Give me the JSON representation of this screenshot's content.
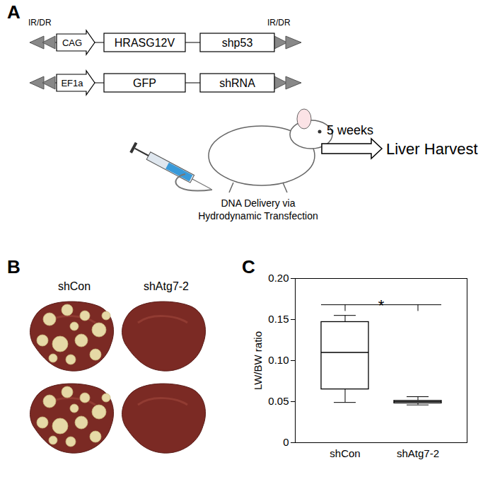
{
  "panel_a": {
    "label": "A",
    "constructs": [
      {
        "end_labels": [
          "IR/DR",
          "IR/DR"
        ],
        "promoter": "CAG",
        "elements": [
          "HRASG12V",
          "shp53"
        ]
      },
      {
        "promoter": "EF1a",
        "elements": [
          "GFP",
          "shRNA"
        ]
      }
    ],
    "delivery": [
      "DNA Delivery via",
      "Hydrodynamic Transfection"
    ],
    "duration": "5 weeks",
    "endpoint": "Liver Harvest"
  },
  "panel_b": {
    "label": "B",
    "groups": [
      "shCon",
      "shAtg7-2"
    ]
  },
  "chart_data": {
    "panel_label": "C",
    "type": "box",
    "categories": [
      "shCon",
      "shAtg7-2"
    ],
    "boxes": [
      {
        "min": 0.049,
        "q1": 0.065,
        "median": 0.11,
        "q3": 0.147,
        "max": 0.155
      },
      {
        "min": 0.046,
        "q1": 0.048,
        "median": 0.05,
        "q3": 0.051,
        "max": 0.056
      }
    ],
    "ylabel": "LW/BW ratio",
    "ylim": [
      0,
      0.2
    ],
    "yticks": [
      0,
      0.05,
      {
        "value": 0.1,
        "label": "0.10"
      },
      0.15,
      {
        "value": 0.2,
        "label": "0.20"
      }
    ],
    "annotations": [
      {
        "text": "*",
        "between": [
          "shCon",
          "shAtg7-2"
        ]
      }
    ],
    "color": "#000000"
  }
}
